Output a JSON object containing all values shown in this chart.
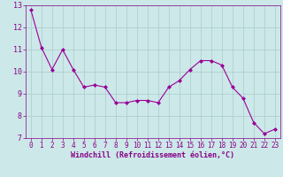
{
  "x": [
    0,
    1,
    2,
    3,
    4,
    5,
    6,
    7,
    8,
    9,
    10,
    11,
    12,
    13,
    14,
    15,
    16,
    17,
    18,
    19,
    20,
    21,
    22,
    23
  ],
  "y": [
    12.8,
    11.1,
    10.1,
    11.0,
    10.1,
    9.3,
    9.4,
    9.3,
    8.6,
    8.6,
    8.7,
    8.7,
    8.6,
    9.3,
    9.6,
    10.1,
    10.5,
    10.5,
    10.3,
    9.3,
    8.8,
    7.7,
    7.2,
    7.4
  ],
  "line_color": "#990099",
  "marker": "D",
  "marker_size": 2.0,
  "bg_color": "#cce8e8",
  "grid_color": "#aacccc",
  "xlabel": "Windchill (Refroidissement éolien,°C)",
  "xlabel_color": "#880088",
  "tick_color": "#880088",
  "ylim": [
    7,
    13
  ],
  "xlim": [
    -0.5,
    23.5
  ],
  "yticks": [
    7,
    8,
    9,
    10,
    11,
    12,
    13
  ],
  "xticks": [
    0,
    1,
    2,
    3,
    4,
    5,
    6,
    7,
    8,
    9,
    10,
    11,
    12,
    13,
    14,
    15,
    16,
    17,
    18,
    19,
    20,
    21,
    22,
    23
  ],
  "tick_fontsize": 5.5,
  "xlabel_fontsize": 6.0,
  "linewidth": 0.8
}
